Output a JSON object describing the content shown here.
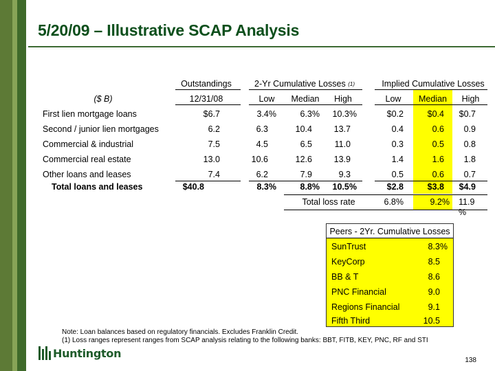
{
  "title": "5/20/09 – Illustrative SCAP Analysis",
  "headers": {
    "outstandings": "Outstandings",
    "losses_2yr": "2-Yr Cumulative Losses",
    "losses_2yr_note": "(1)",
    "implied": "Implied Cumulative Losses",
    "units": "($ B)",
    "date": "12/31/08",
    "low": "Low",
    "median": "Median",
    "high": "High"
  },
  "rows": [
    {
      "label": "First lien mortgage loans",
      "outstanding": "$6.7",
      "low": "3.4%",
      "median": "6.3%",
      "high": "10.3%",
      "i_low": "$0.2",
      "i_median": "$0.4",
      "i_high": "$0.7"
    },
    {
      "label": "Second / junior lien mortgages",
      "outstanding": "6.2",
      "low": "6.3",
      "median": "10.4",
      "high": "13.7",
      "i_low": "0.4",
      "i_median": "0.6",
      "i_high": "0.9"
    },
    {
      "label": "Commercial & industrial",
      "outstanding": "7.5",
      "low": "4.5",
      "median": "6.5",
      "high": "11.0",
      "i_low": "0.3",
      "i_median": "0.5",
      "i_high": "0.8"
    },
    {
      "label": "Commercial real estate",
      "outstanding": "13.0",
      "low": "10.6",
      "median": "12.6",
      "high": "13.9",
      "i_low": "1.4",
      "i_median": "1.6",
      "i_high": "1.8"
    },
    {
      "label": "Other loans and leases",
      "outstanding": "7.4",
      "low": "6.2",
      "median": "7.9",
      "high": "9.3",
      "i_low": "0.5",
      "i_median": "0.6",
      "i_high": "0.7"
    }
  ],
  "total": {
    "label": "Total loans and leases",
    "outstanding": "$40.8",
    "low": "8.3%",
    "median": "8.8%",
    "high": "10.5%",
    "i_low": "$2.8",
    "i_median": "$3.8",
    "i_high": "$4.9"
  },
  "loss_rate": {
    "label": "Total loss rate",
    "low": "6.8%",
    "median": "9.2%",
    "high_line1": "11.9",
    "high_line2": "%"
  },
  "peers": {
    "title": "Peers - 2Yr. Cumulative Losses",
    "items": [
      {
        "name": "SunTrust",
        "value": "8.3%"
      },
      {
        "name": "KeyCorp",
        "value": "8.5"
      },
      {
        "name": "BB & T",
        "value": "8.6"
      },
      {
        "name": "PNC Financial",
        "value": "9.0"
      },
      {
        "name": "Regions Financial",
        "value": "9.1"
      },
      {
        "name": "Fifth Third",
        "value": "10.5"
      }
    ]
  },
  "notes": {
    "note1": "Note: Loan balances based on regulatory financials.  Excludes Franklin Credit.",
    "note2": "(1) Loss ranges represent ranges from SCAP analysis relating to the following banks: BBT, FITB, KEY, PNC, RF and STI"
  },
  "logo_text": "Huntington",
  "page_number": "138",
  "colors": {
    "title": "#0d4f1c",
    "highlight": "#ffff00",
    "stripe_dark": "#3f6a2a",
    "stripe_mid": "#5d7a36",
    "stripe_light": "#88a457",
    "logo": "#1e5b2a"
  }
}
